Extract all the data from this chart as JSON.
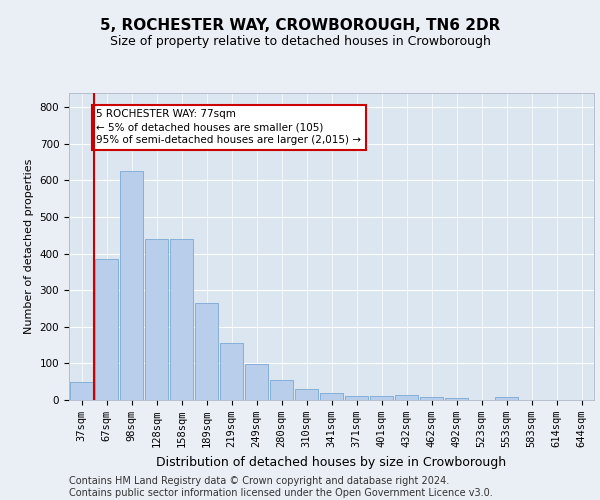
{
  "title": "5, ROCHESTER WAY, CROWBOROUGH, TN6 2DR",
  "subtitle": "Size of property relative to detached houses in Crowborough",
  "xlabel": "Distribution of detached houses by size in Crowborough",
  "ylabel": "Number of detached properties",
  "categories": [
    "37sqm",
    "67sqm",
    "98sqm",
    "128sqm",
    "158sqm",
    "189sqm",
    "219sqm",
    "249sqm",
    "280sqm",
    "310sqm",
    "341sqm",
    "371sqm",
    "401sqm",
    "432sqm",
    "462sqm",
    "492sqm",
    "523sqm",
    "553sqm",
    "583sqm",
    "614sqm",
    "644sqm"
  ],
  "values": [
    50,
    385,
    625,
    440,
    440,
    265,
    155,
    97,
    55,
    30,
    20,
    12,
    12,
    15,
    8,
    5,
    0,
    8,
    0,
    0,
    0
  ],
  "bar_color": "#b8ceea",
  "bar_edge_color": "#6a9fd0",
  "vline_x": 1.5,
  "vline_color": "#cc0000",
  "annotation_text": "5 ROCHESTER WAY: 77sqm\n← 5% of detached houses are smaller (105)\n95% of semi-detached houses are larger (2,015) →",
  "annotation_box_color": "#ffffff",
  "annotation_box_edgecolor": "#cc0000",
  "ylim": [
    0,
    840
  ],
  "yticks": [
    0,
    100,
    200,
    300,
    400,
    500,
    600,
    700,
    800
  ],
  "background_color": "#eaeff6",
  "plot_background": "#dce6f0",
  "footer": "Contains HM Land Registry data © Crown copyright and database right 2024.\nContains public sector information licensed under the Open Government Licence v3.0.",
  "title_fontsize": 11,
  "subtitle_fontsize": 9,
  "xlabel_fontsize": 9,
  "ylabel_fontsize": 8,
  "footer_fontsize": 7,
  "tick_fontsize": 7.5
}
